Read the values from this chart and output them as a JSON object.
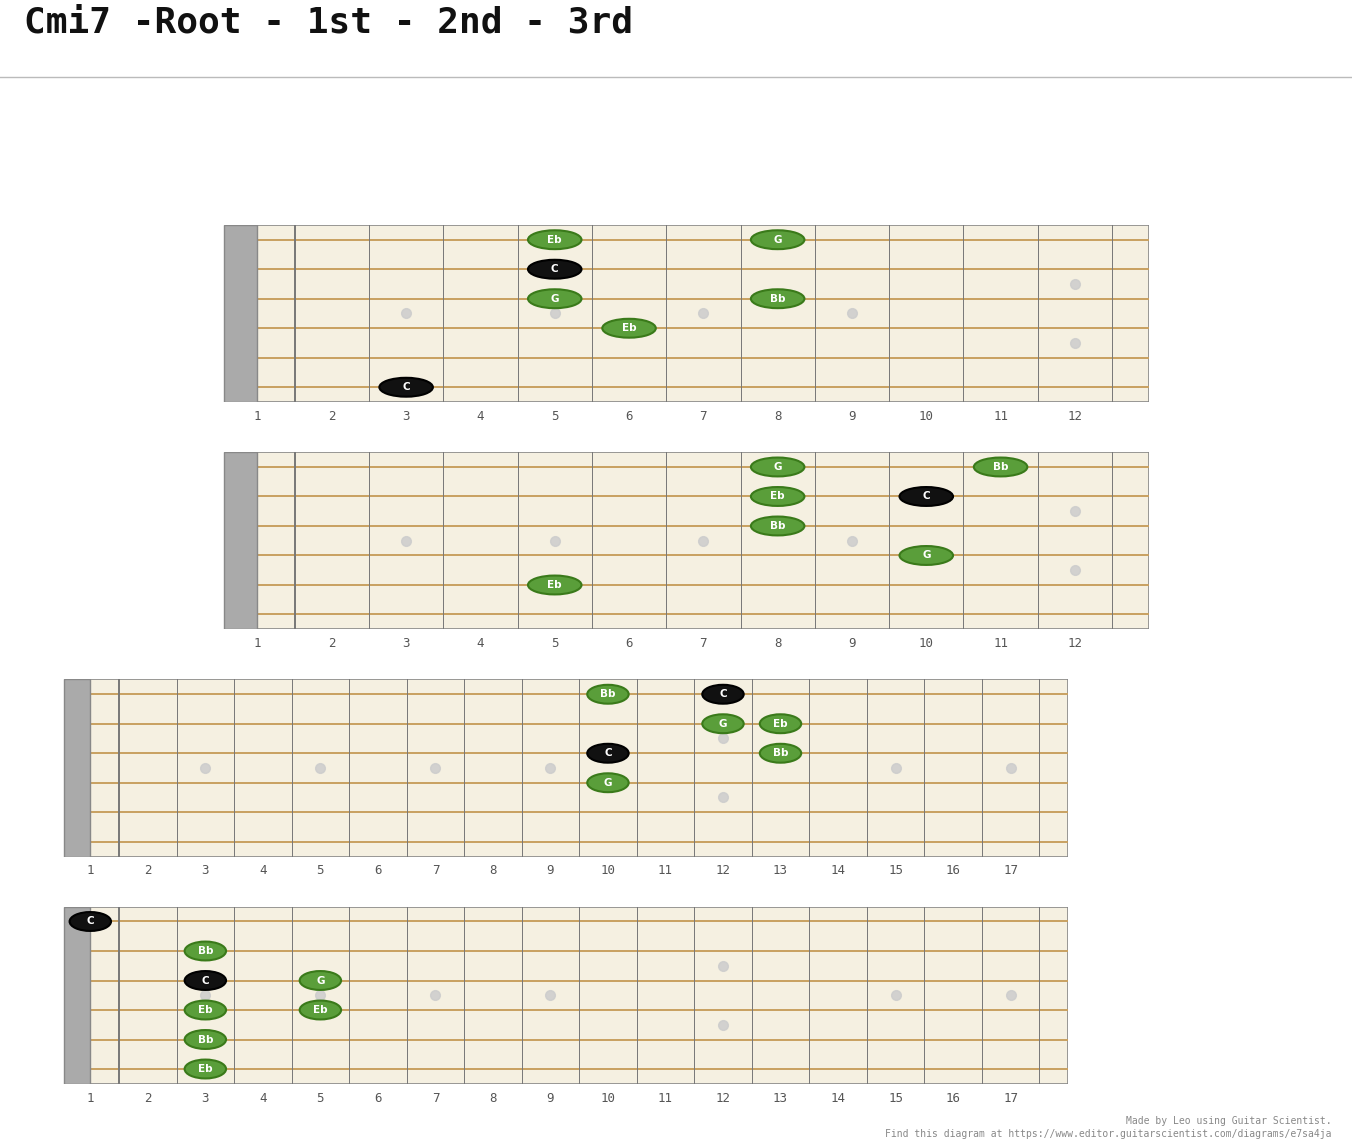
{
  "title": "Cmi7 -Root - 1st - 2nd - 3rd",
  "title_fontsize": 26,
  "title_font": "monospace",
  "bg_color": "#ffffff",
  "fretboard_color": "#f5f0e1",
  "string_color": "#c8a060",
  "nut_color": "#a0a0a0",
  "marker_dot_color": "#cccccc",
  "footer_text": "Made by Leo using Guitar Scientist.",
  "footer_text2": "Find this diagram at https://www.editor.guitarscientist.com/diagrams/e7sa4ja",
  "green_fill": "#5a9e3a",
  "green_edge": "#3a7a1a",
  "root_fill": "#111111",
  "root_edge": "#000000",
  "note_text_white": "#ffffff",
  "diagrams": [
    {
      "id": 1,
      "num_frets": 12,
      "num_strings": 6,
      "marker_frets": [
        3,
        5,
        7,
        9,
        12
      ],
      "notes": [
        {
          "fret": 3,
          "string": 1,
          "label": "C",
          "type": "root"
        },
        {
          "fret": 5,
          "string": 6,
          "label": "Eb",
          "type": "green"
        },
        {
          "fret": 5,
          "string": 5,
          "label": "C",
          "type": "root"
        },
        {
          "fret": 5,
          "string": 4,
          "label": "G",
          "type": "green"
        },
        {
          "fret": 6,
          "string": 3,
          "label": "Eb",
          "type": "green"
        },
        {
          "fret": 8,
          "string": 6,
          "label": "G",
          "type": "green"
        },
        {
          "fret": 8,
          "string": 4,
          "label": "Bb",
          "type": "green"
        }
      ]
    },
    {
      "id": 2,
      "num_frets": 12,
      "num_strings": 6,
      "marker_frets": [
        3,
        5,
        7,
        9,
        12
      ],
      "notes": [
        {
          "fret": 5,
          "string": 2,
          "label": "Eb",
          "type": "green"
        },
        {
          "fret": 8,
          "string": 6,
          "label": "G",
          "type": "green"
        },
        {
          "fret": 8,
          "string": 5,
          "label": "Eb",
          "type": "green"
        },
        {
          "fret": 8,
          "string": 4,
          "label": "Bb",
          "type": "green"
        },
        {
          "fret": 10,
          "string": 5,
          "label": "C",
          "type": "root"
        },
        {
          "fret": 10,
          "string": 3,
          "label": "G",
          "type": "green"
        },
        {
          "fret": 11,
          "string": 6,
          "label": "Bb",
          "type": "green"
        }
      ]
    },
    {
      "id": 3,
      "num_frets": 17,
      "num_strings": 6,
      "marker_frets": [
        3,
        5,
        7,
        9,
        12,
        15,
        17
      ],
      "notes": [
        {
          "fret": 10,
          "string": 6,
          "label": "Bb",
          "type": "green"
        },
        {
          "fret": 10,
          "string": 4,
          "label": "C",
          "type": "root"
        },
        {
          "fret": 10,
          "string": 3,
          "label": "G",
          "type": "green"
        },
        {
          "fret": 12,
          "string": 6,
          "label": "C",
          "type": "root"
        },
        {
          "fret": 12,
          "string": 5,
          "label": "G",
          "type": "green"
        },
        {
          "fret": 13,
          "string": 5,
          "label": "Eb",
          "type": "green"
        },
        {
          "fret": 13,
          "string": 4,
          "label": "Bb",
          "type": "green"
        }
      ]
    },
    {
      "id": 4,
      "num_frets": 17,
      "num_strings": 6,
      "marker_frets": [
        3,
        5,
        7,
        9,
        12,
        15,
        17
      ],
      "notes": [
        {
          "fret": 1,
          "string": 6,
          "label": "C",
          "type": "root"
        },
        {
          "fret": 3,
          "string": 5,
          "label": "Bb",
          "type": "green"
        },
        {
          "fret": 3,
          "string": 4,
          "label": "C",
          "type": "root"
        },
        {
          "fret": 3,
          "string": 3,
          "label": "Eb",
          "type": "green"
        },
        {
          "fret": 3,
          "string": 2,
          "label": "Bb",
          "type": "green"
        },
        {
          "fret": 3,
          "string": 1,
          "label": "Eb",
          "type": "green"
        },
        {
          "fret": 5,
          "string": 4,
          "label": "G",
          "type": "green"
        },
        {
          "fret": 5,
          "string": 3,
          "label": "Eb",
          "type": "green"
        }
      ]
    }
  ]
}
